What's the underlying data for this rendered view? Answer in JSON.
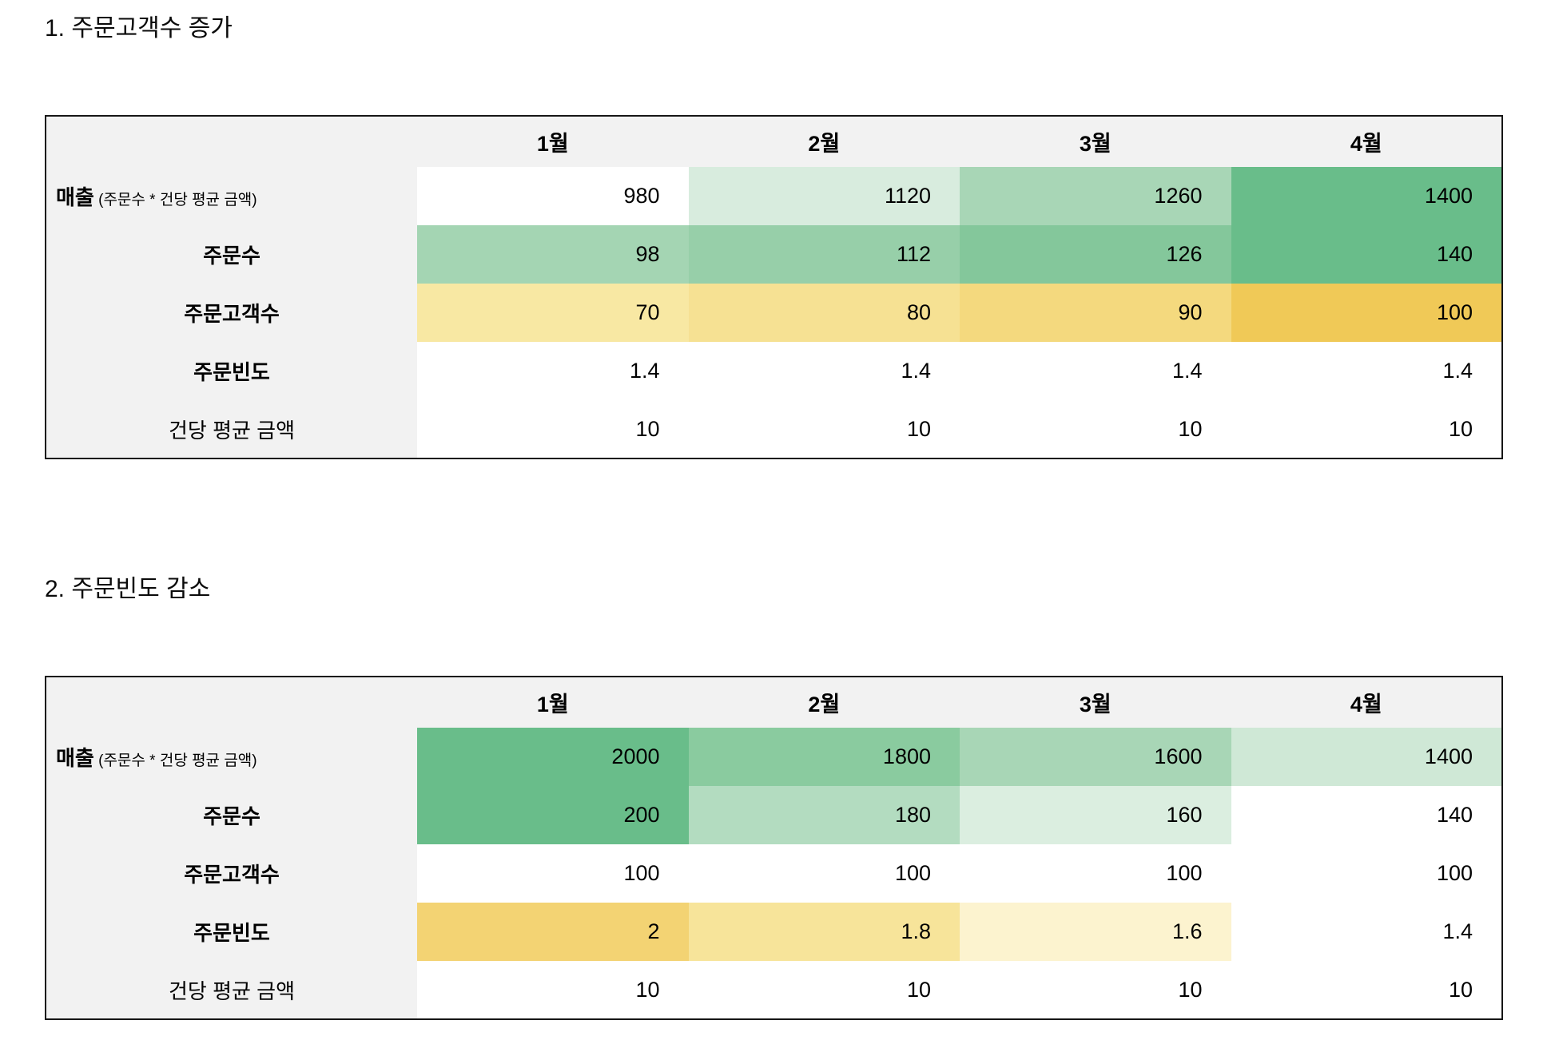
{
  "page": {
    "background": "#ffffff"
  },
  "styles": {
    "header_bg": "#f2f2f2",
    "label_column_bg": "#f2f2f2",
    "table_border": "#161616",
    "green_dark": "#69bd8a",
    "green_mid": "#a8d6b6",
    "green_light": "#d8ecde",
    "yellow_dark": "#f0c957",
    "yellow_light": "#f8e8a3"
  },
  "chart_data": [
    {
      "type": "table",
      "title": "1. 주문고객수 증가",
      "columns": [
        "",
        "1월",
        "2월",
        "3월",
        "4월"
      ],
      "rows": [
        {
          "label": "매출",
          "note": "(주문수 * 건당 평균 금액)",
          "label_bold": true,
          "label_align": "left",
          "values": [
            980,
            1120,
            1260,
            1400
          ],
          "cell_colors": [
            "#ffffff",
            "#d8ecde",
            "#a8d6b6",
            "#69bd8a"
          ]
        },
        {
          "label": "주문수",
          "label_bold": true,
          "label_align": "center",
          "values": [
            98,
            112,
            126,
            140
          ],
          "cell_colors": [
            "#a4d5b3",
            "#97cfa9",
            "#84c79b",
            "#69bd8a"
          ]
        },
        {
          "label": "주문고객수",
          "label_bold": true,
          "label_align": "center",
          "values": [
            70,
            80,
            90,
            100
          ],
          "cell_colors": [
            "#f8e8a3",
            "#f6e193",
            "#f4d97e",
            "#f0c957"
          ]
        },
        {
          "label": "주문빈도",
          "label_bold": true,
          "label_align": "center",
          "values": [
            1.4,
            1.4,
            1.4,
            1.4
          ],
          "cell_colors": [
            "#ffffff",
            "#ffffff",
            "#ffffff",
            "#ffffff"
          ]
        },
        {
          "label": "건당 평균 금액",
          "label_bold": false,
          "label_align": "center",
          "values": [
            10,
            10,
            10,
            10
          ],
          "cell_colors": [
            "#ffffff",
            "#ffffff",
            "#ffffff",
            "#ffffff"
          ]
        }
      ]
    },
    {
      "type": "table",
      "title": "2. 주문빈도 감소",
      "columns": [
        "",
        "1월",
        "2월",
        "3월",
        "4월"
      ],
      "rows": [
        {
          "label": "매출",
          "note": "(주문수 * 건당 평균 금액)",
          "label_bold": true,
          "label_align": "left",
          "values": [
            2000,
            1800,
            1600,
            1400
          ],
          "cell_colors": [
            "#69bd8a",
            "#8acb9f",
            "#a8d6b6",
            "#cfe8d6"
          ]
        },
        {
          "label": "주문수",
          "label_bold": true,
          "label_align": "center",
          "values": [
            200,
            180,
            160,
            140
          ],
          "cell_colors": [
            "#69bd8a",
            "#b3dcc0",
            "#dbeee0",
            "#ffffff"
          ]
        },
        {
          "label": "주문고객수",
          "label_bold": true,
          "label_align": "center",
          "values": [
            100,
            100,
            100,
            100
          ],
          "cell_colors": [
            "#ffffff",
            "#ffffff",
            "#ffffff",
            "#ffffff"
          ]
        },
        {
          "label": "주문빈도",
          "label_bold": true,
          "label_align": "center",
          "values": [
            2,
            1.8,
            1.6,
            1.4
          ],
          "cell_colors": [
            "#f3d373",
            "#f7e49a",
            "#fcf3cf",
            "#ffffff"
          ]
        },
        {
          "label": "건당 평균 금액",
          "label_bold": false,
          "label_align": "center",
          "values": [
            10,
            10,
            10,
            10
          ],
          "cell_colors": [
            "#ffffff",
            "#ffffff",
            "#ffffff",
            "#ffffff"
          ]
        }
      ]
    }
  ]
}
